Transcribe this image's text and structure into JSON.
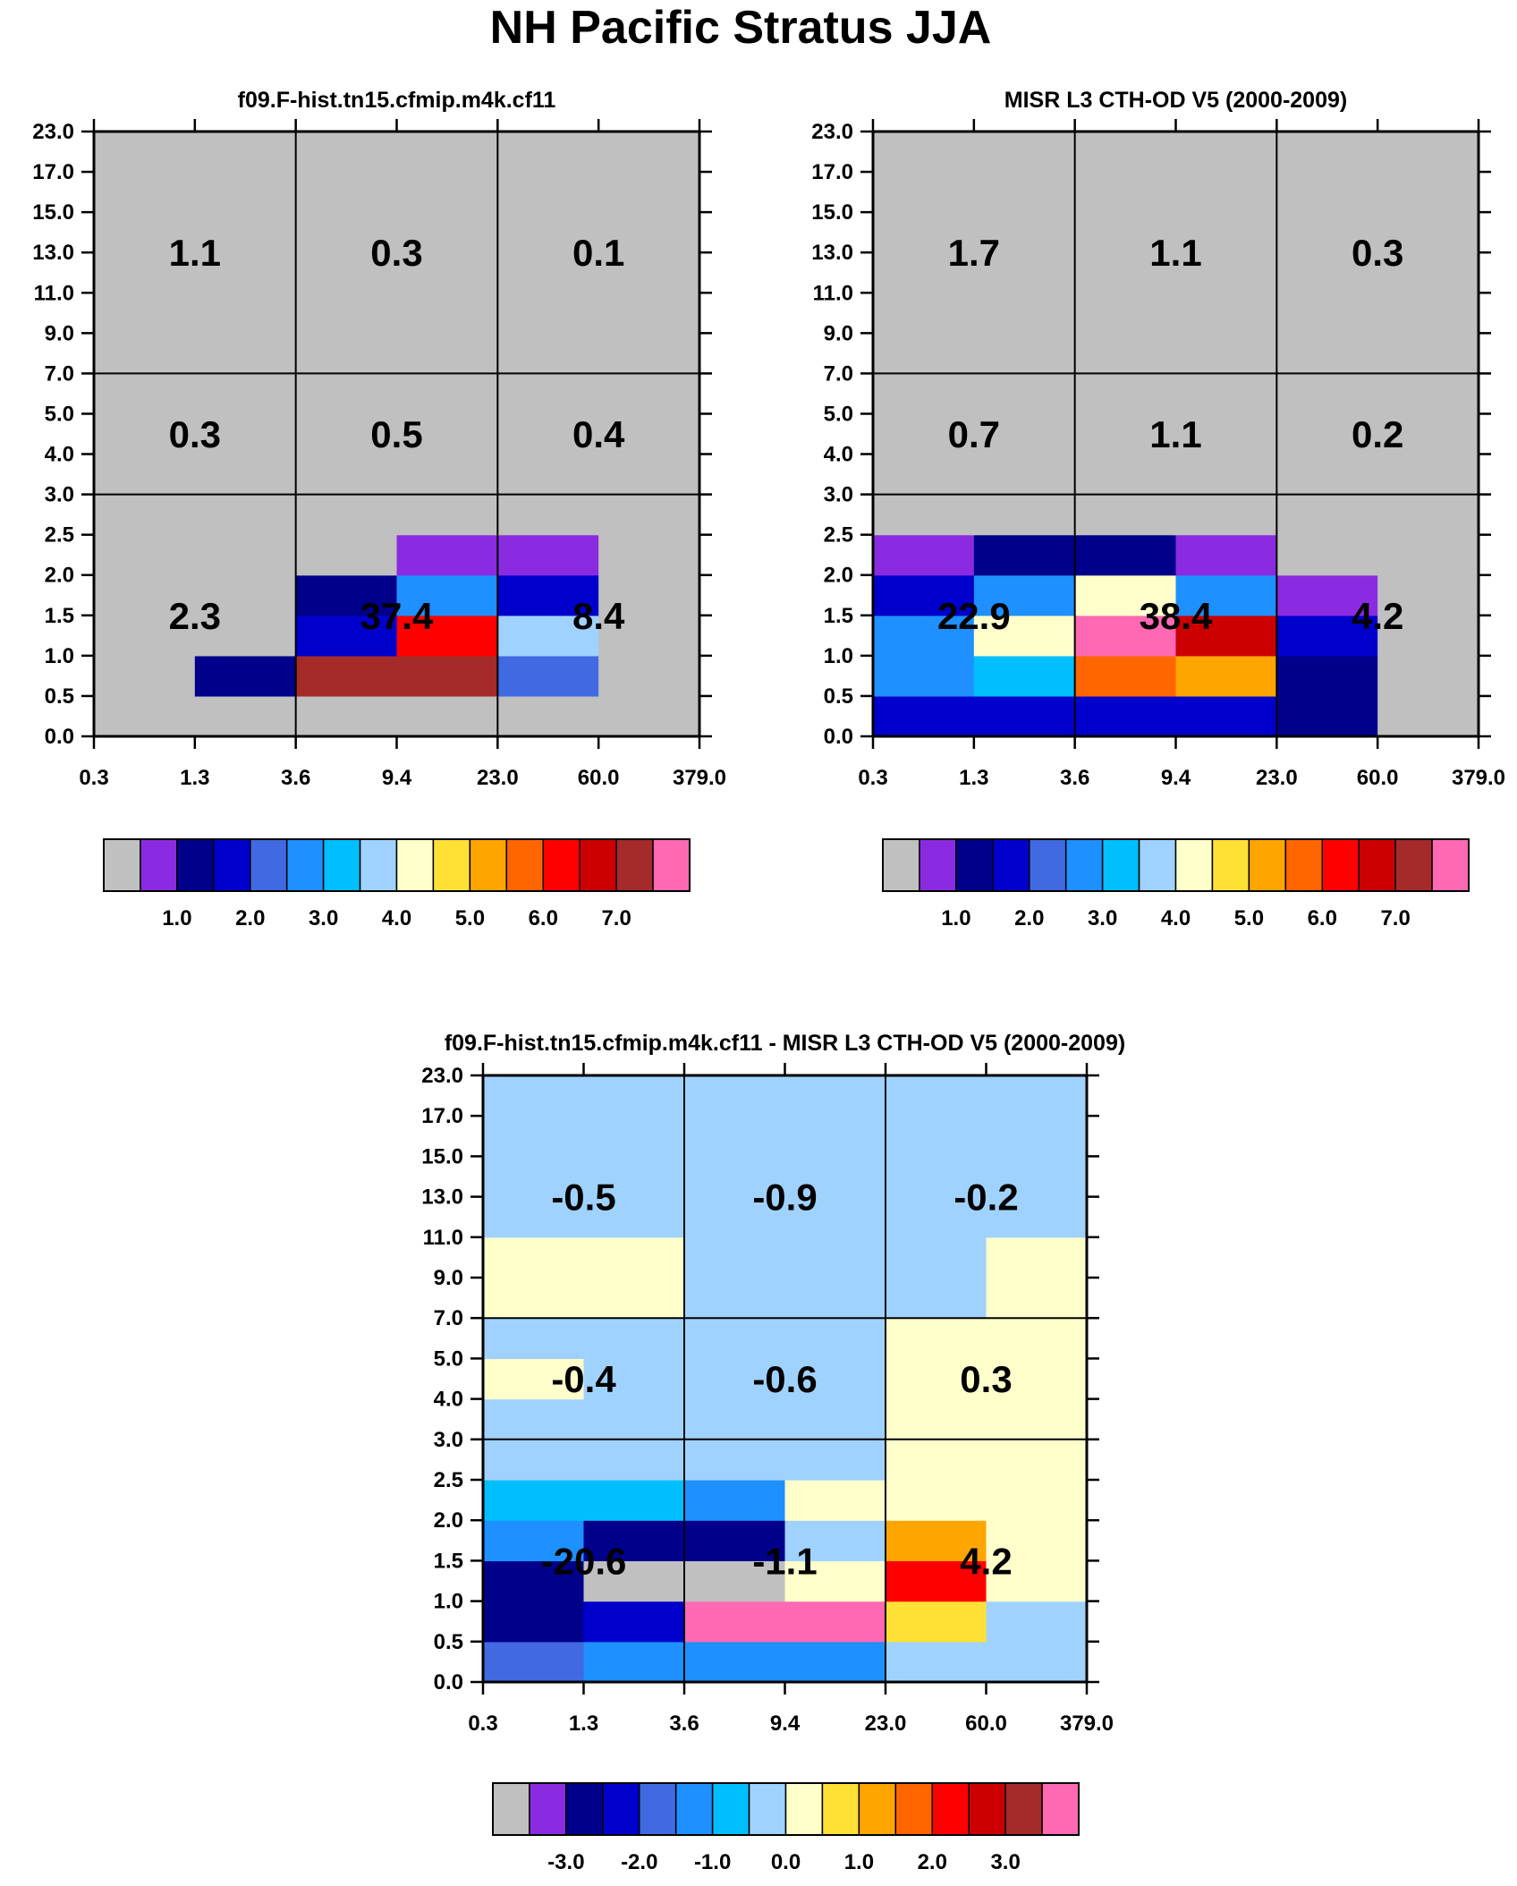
{
  "figure": {
    "title": "NH Pacific Stratus JJA"
  },
  "chart_data": [
    {
      "type": "heatmap",
      "title": "f09.F-hist.tn15.cfmip.m4k.cf11",
      "x_tick_labels": [
        "0.3",
        "1.3",
        "3.6",
        "9.4",
        "23.0",
        "60.0",
        "379.0"
      ],
      "y_tick_labels": [
        "0.0",
        "0.5",
        "1.0",
        "1.5",
        "2.0",
        "2.5",
        "3.0",
        "4.0",
        "5.0",
        "7.0",
        "9.0",
        "11.0",
        "13.0",
        "15.0",
        "17.0",
        "23.0"
      ],
      "cells": [
        [
          0,
          0,
          0,
          0,
          0,
          0
        ],
        [
          0,
          2,
          14,
          14,
          4,
          0
        ],
        [
          0,
          0,
          3,
          12,
          7,
          0
        ],
        [
          0,
          0,
          2,
          5,
          3,
          0
        ],
        [
          0,
          0,
          0,
          1,
          1,
          0
        ],
        [
          0,
          0,
          0,
          0,
          0,
          0
        ],
        [
          0,
          0,
          0,
          0,
          0,
          0
        ],
        [
          0,
          0,
          0,
          0,
          0,
          0
        ],
        [
          0,
          0,
          0,
          0,
          0,
          0
        ],
        [
          0,
          0,
          0,
          0,
          0,
          0
        ],
        [
          0,
          0,
          0,
          0,
          0,
          0
        ],
        [
          0,
          0,
          0,
          0,
          0,
          0
        ],
        [
          0,
          0,
          0,
          0,
          0,
          0
        ],
        [
          0,
          0,
          0,
          0,
          0,
          0
        ],
        [
          0,
          0,
          0,
          0,
          0,
          0
        ]
      ],
      "region_values": [
        [
          "2.3",
          "37.4",
          "8.4"
        ],
        [
          "0.3",
          "0.5",
          "0.4"
        ],
        [
          "1.1",
          "0.3",
          "0.1"
        ]
      ],
      "colorbar": {
        "colors": [
          "#c0c0c0",
          "#8a2be2",
          "#00008b",
          "#0000cd",
          "#4169e1",
          "#1e90ff",
          "#00bfff",
          "#a0d2ff",
          "#ffffcc",
          "#ffe135",
          "#ffa500",
          "#ff6600",
          "#ff0000",
          "#cc0000",
          "#a52a2a",
          "#ff69b4"
        ],
        "tick_labels": [
          "1.0",
          "2.0",
          "3.0",
          "4.0",
          "5.0",
          "6.0",
          "7.0"
        ]
      }
    },
    {
      "type": "heatmap",
      "title": "MISR L3 CTH-OD V5 (2000-2009)",
      "x_tick_labels": [
        "0.3",
        "1.3",
        "3.6",
        "9.4",
        "23.0",
        "60.0",
        "379.0"
      ],
      "y_tick_labels": [
        "0.0",
        "0.5",
        "1.0",
        "1.5",
        "2.0",
        "2.5",
        "3.0",
        "4.0",
        "5.0",
        "7.0",
        "9.0",
        "11.0",
        "13.0",
        "15.0",
        "17.0",
        "23.0"
      ],
      "cells": [
        [
          3,
          3,
          3,
          3,
          2,
          0
        ],
        [
          5,
          6,
          11,
          10,
          2,
          0
        ],
        [
          5,
          8,
          15,
          13,
          3,
          0
        ],
        [
          3,
          5,
          8,
          5,
          1,
          0
        ],
        [
          1,
          2,
          2,
          1,
          0,
          0
        ],
        [
          0,
          0,
          0,
          0,
          0,
          0
        ],
        [
          0,
          0,
          0,
          0,
          0,
          0
        ],
        [
          0,
          0,
          0,
          0,
          0,
          0
        ],
        [
          0,
          0,
          0,
          0,
          0,
          0
        ],
        [
          0,
          0,
          0,
          0,
          0,
          0
        ],
        [
          0,
          0,
          0,
          0,
          0,
          0
        ],
        [
          0,
          0,
          0,
          0,
          0,
          0
        ],
        [
          0,
          0,
          0,
          0,
          0,
          0
        ],
        [
          0,
          0,
          0,
          0,
          0,
          0
        ],
        [
          0,
          0,
          0,
          0,
          0,
          0
        ]
      ],
      "region_values": [
        [
          "22.9",
          "38.4",
          "4.2"
        ],
        [
          "0.7",
          "1.1",
          "0.2"
        ],
        [
          "1.7",
          "1.1",
          "0.3"
        ]
      ],
      "colorbar": {
        "colors": [
          "#c0c0c0",
          "#8a2be2",
          "#00008b",
          "#0000cd",
          "#4169e1",
          "#1e90ff",
          "#00bfff",
          "#a0d2ff",
          "#ffffcc",
          "#ffe135",
          "#ffa500",
          "#ff6600",
          "#ff0000",
          "#cc0000",
          "#a52a2a",
          "#ff69b4"
        ],
        "tick_labels": [
          "1.0",
          "2.0",
          "3.0",
          "4.0",
          "5.0",
          "6.0",
          "7.0"
        ]
      }
    },
    {
      "type": "heatmap",
      "title": "f09.F-hist.tn15.cfmip.m4k.cf11 - MISR L3 CTH-OD V5 (2000-2009)",
      "x_tick_labels": [
        "0.3",
        "1.3",
        "3.6",
        "9.4",
        "23.0",
        "60.0",
        "379.0"
      ],
      "y_tick_labels": [
        "0.0",
        "0.5",
        "1.0",
        "1.5",
        "2.0",
        "2.5",
        "3.0",
        "4.0",
        "5.0",
        "7.0",
        "9.0",
        "11.0",
        "13.0",
        "15.0",
        "17.0",
        "23.0"
      ],
      "cells": [
        [
          4,
          5,
          5,
          5,
          7,
          7
        ],
        [
          2,
          3,
          15,
          15,
          9,
          7
        ],
        [
          2,
          0,
          0,
          8,
          12,
          8
        ],
        [
          5,
          2,
          2,
          7,
          10,
          8
        ],
        [
          6,
          6,
          5,
          8,
          8,
          8
        ],
        [
          7,
          7,
          7,
          7,
          8,
          8
        ],
        [
          7,
          7,
          7,
          7,
          8,
          8
        ],
        [
          8,
          7,
          7,
          7,
          8,
          8
        ],
        [
          7,
          7,
          7,
          7,
          8,
          8
        ],
        [
          8,
          8,
          7,
          7,
          7,
          8
        ],
        [
          8,
          8,
          7,
          7,
          7,
          8
        ],
        [
          7,
          7,
          7,
          7,
          7,
          7
        ],
        [
          7,
          7,
          7,
          7,
          7,
          7
        ],
        [
          7,
          7,
          7,
          7,
          7,
          7
        ],
        [
          7,
          7,
          7,
          7,
          7,
          7
        ]
      ],
      "region_values": [
        [
          "-20.6",
          "-1.1",
          "4.2"
        ],
        [
          "-0.4",
          "-0.6",
          "0.3"
        ],
        [
          "-0.5",
          "-0.9",
          "-0.2"
        ]
      ],
      "colorbar": {
        "colors": [
          "#c0c0c0",
          "#8a2be2",
          "#00008b",
          "#0000cd",
          "#4169e1",
          "#1e90ff",
          "#00bfff",
          "#a0d2ff",
          "#ffffcc",
          "#ffe135",
          "#ffa500",
          "#ff6600",
          "#ff0000",
          "#cc0000",
          "#a52a2a",
          "#ff69b4"
        ],
        "tick_labels": [
          "-3.0",
          "-2.0",
          "-1.0",
          "0.0",
          "1.0",
          "2.0",
          "3.0"
        ]
      }
    }
  ]
}
